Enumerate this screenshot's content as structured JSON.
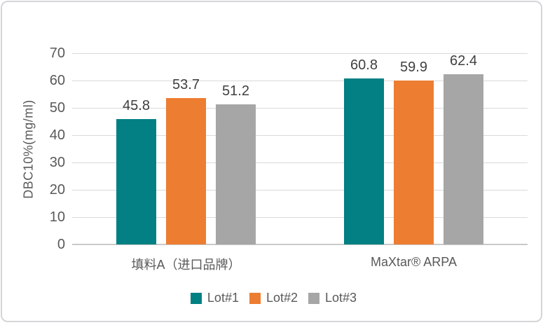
{
  "chart_data": {
    "type": "bar",
    "title": "",
    "xlabel": "",
    "ylabel": "DBC10%(mg/ml)",
    "ylim": [
      0,
      70
    ],
    "yticks": [
      0,
      10,
      20,
      30,
      40,
      50,
      60,
      70
    ],
    "grid": true,
    "legend_position": "bottom",
    "categories": [
      "填料A（进口品牌）",
      "MaXtar® ARPA"
    ],
    "series": [
      {
        "name": "Lot#1",
        "color": "#028083",
        "values": [
          45.8,
          60.8
        ]
      },
      {
        "name": "Lot#2",
        "color": "#ED7D31",
        "values": [
          53.7,
          59.9
        ]
      },
      {
        "name": "Lot#3",
        "color": "#A6A6A6",
        "values": [
          51.2,
          62.4
        ]
      }
    ],
    "data_labels": true
  },
  "style": {
    "grid_color": "#D9D9D9",
    "axis_line_color": "#C9C9C9",
    "axis_text_color": "#595959",
    "data_label_color": "#404040",
    "card_border_color": "#D5D5D9",
    "background": "#FFFFFF"
  }
}
